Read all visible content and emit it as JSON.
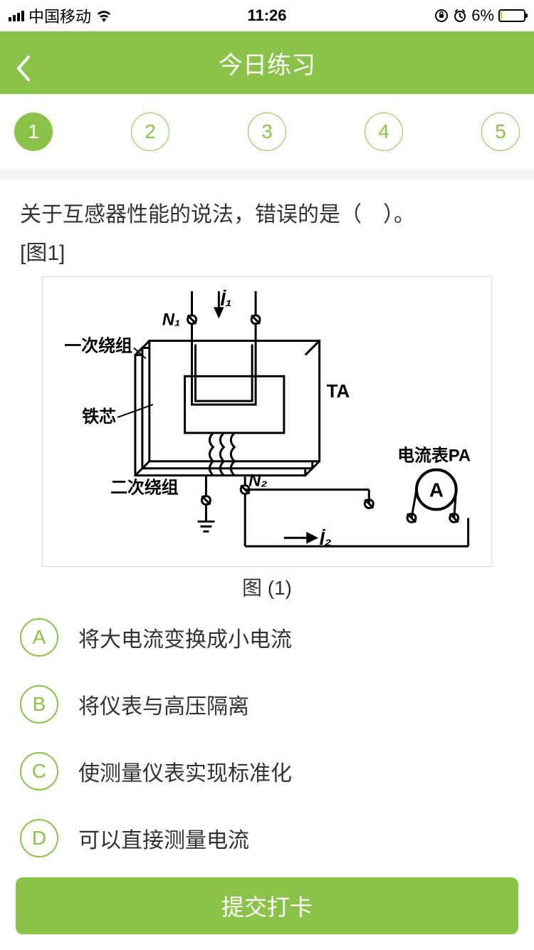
{
  "status_bar": {
    "carrier": "中国移动",
    "time": "11:26",
    "battery_percent": "6%",
    "battery_fill_pct": 6,
    "battery_fill_color": "#ffb300"
  },
  "nav": {
    "title": "今日练习"
  },
  "question_nav": {
    "items": [
      "1",
      "2",
      "3",
      "4",
      "5"
    ],
    "active_index": 0
  },
  "question": {
    "text": "关于互感器性能的说法，错误的是（　）。",
    "figure_ref": "[图1]",
    "figure_caption": "图 (1)",
    "diagram": {
      "type": "diagram",
      "labels": {
        "i1": "İ₁",
        "n1": "N₁",
        "primary": "一次绕组",
        "core": "铁芯",
        "ta": "TA",
        "secondary": "二次绕组",
        "n2": "N₂",
        "i2": "İ₂",
        "ammeter_label": "电流表PA",
        "ammeter_symbol": "A"
      },
      "colors": {
        "stroke": "#000000",
        "background": "#ffffff",
        "text": "#000000"
      },
      "line_width": 2,
      "text_fontsize": 24
    },
    "options": [
      {
        "letter": "A",
        "text": "将大电流变换成小电流"
      },
      {
        "letter": "B",
        "text": "将仪表与高压隔离"
      },
      {
        "letter": "C",
        "text": "使测量仪表实现标准化"
      },
      {
        "letter": "D",
        "text": "可以直接测量电流"
      }
    ]
  },
  "submit": {
    "label": "提交打卡"
  },
  "colors": {
    "accent": "#8bc34a",
    "text": "#333333",
    "background": "#f5f5f5",
    "panel": "#ffffff"
  }
}
